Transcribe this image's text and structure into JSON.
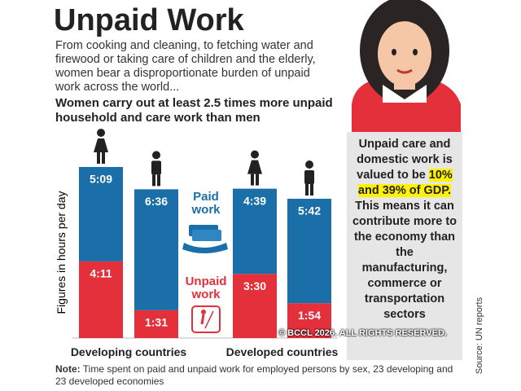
{
  "chart_data": {
    "type": "bar",
    "title": "Unpaid Work",
    "subtitle": "From cooking and cleaning, to fetching water and firewood or taking care of children and the elderly, women bear a disproportionate burden of unpaid work across the world...",
    "heading": "Women carry out at least 2.5 times more unpaid household and care work than men",
    "ylabel": "Figures in hours per day",
    "categories": [
      null,
      null,
      null,
      null
    ],
    "groups": [
      "Developing countries",
      "Developed countries"
    ],
    "series": [
      {
        "name": "Paid work",
        "color": "#1b6fa8",
        "values": [
          5.15,
          6.6,
          4.65,
          5.7
        ],
        "value_labels": [
          "5:09",
          "6:36",
          "4:39",
          "5:42"
        ]
      },
      {
        "name": "Unpaid work",
        "color": "#e3303b",
        "values": [
          4.1833,
          1.5167,
          3.5,
          1.9
        ],
        "value_labels": [
          "4:11",
          "1:31",
          "3:30",
          "1:54"
        ]
      }
    ],
    "ylim": [
      0,
      10
    ]
  },
  "callout": {
    "before": "Unpaid care and domestic work is valued to be ",
    "highlight": "10% and 39% of GDP.",
    "after": " This means it can contribute more to the economy than the manufacturing, commerce or transportation sectors"
  },
  "source": "Source: UN reports",
  "note": {
    "label": "Note:",
    "text": " Time spent on paid and unpaid work for employed persons by sex, 23 developing and 23 developed economies"
  },
  "watermark": "© BCCL 2026. ALL RIGHTS RESERVED."
}
